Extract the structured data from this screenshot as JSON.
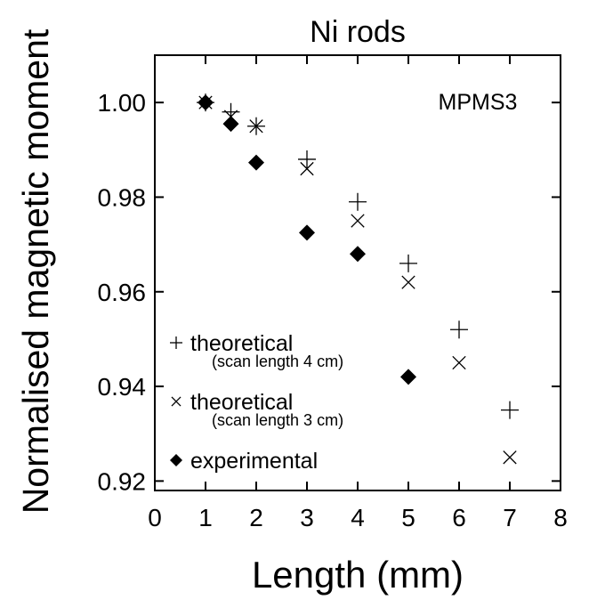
{
  "chart_data": {
    "type": "scatter",
    "title": "Ni rods",
    "xlabel": "Length (mm)",
    "ylabel": "Normalised magnetic moment",
    "annotation": "MPMS3",
    "xlim": [
      0,
      8
    ],
    "ylim": [
      0.918,
      1.01
    ],
    "xticks": [
      0,
      1,
      2,
      3,
      4,
      5,
      6,
      7,
      8
    ],
    "yticks": [
      0.92,
      0.94,
      0.96,
      0.98,
      1.0
    ],
    "xtick_labels": [
      "0",
      "1",
      "2",
      "3",
      "4",
      "5",
      "6",
      "7",
      "8"
    ],
    "ytick_labels": [
      "0.92",
      "0.94",
      "0.96",
      "0.98",
      "1.00"
    ],
    "grid": false,
    "legend_position": "bottom-left",
    "series": [
      {
        "name": "theoretical",
        "note": "(scan length 4 cm)",
        "marker": "plus",
        "x": [
          1,
          1.5,
          2,
          3,
          4,
          5,
          6,
          7
        ],
        "y": [
          1.0,
          0.998,
          0.995,
          0.988,
          0.979,
          0.966,
          0.952,
          0.935
        ]
      },
      {
        "name": "theoretical",
        "note": "(scan length 3 cm)",
        "marker": "cross",
        "x": [
          1,
          1.5,
          2,
          3,
          4,
          5,
          6,
          7
        ],
        "y": [
          1.0,
          0.997,
          0.995,
          0.986,
          0.975,
          0.962,
          0.945,
          0.925
        ]
      },
      {
        "name": "experimental",
        "marker": "diamond",
        "x": [
          1,
          1.5,
          2,
          3,
          4,
          5
        ],
        "y": [
          1.0,
          0.9955,
          0.9873,
          0.9725,
          0.968,
          0.942
        ]
      }
    ]
  }
}
